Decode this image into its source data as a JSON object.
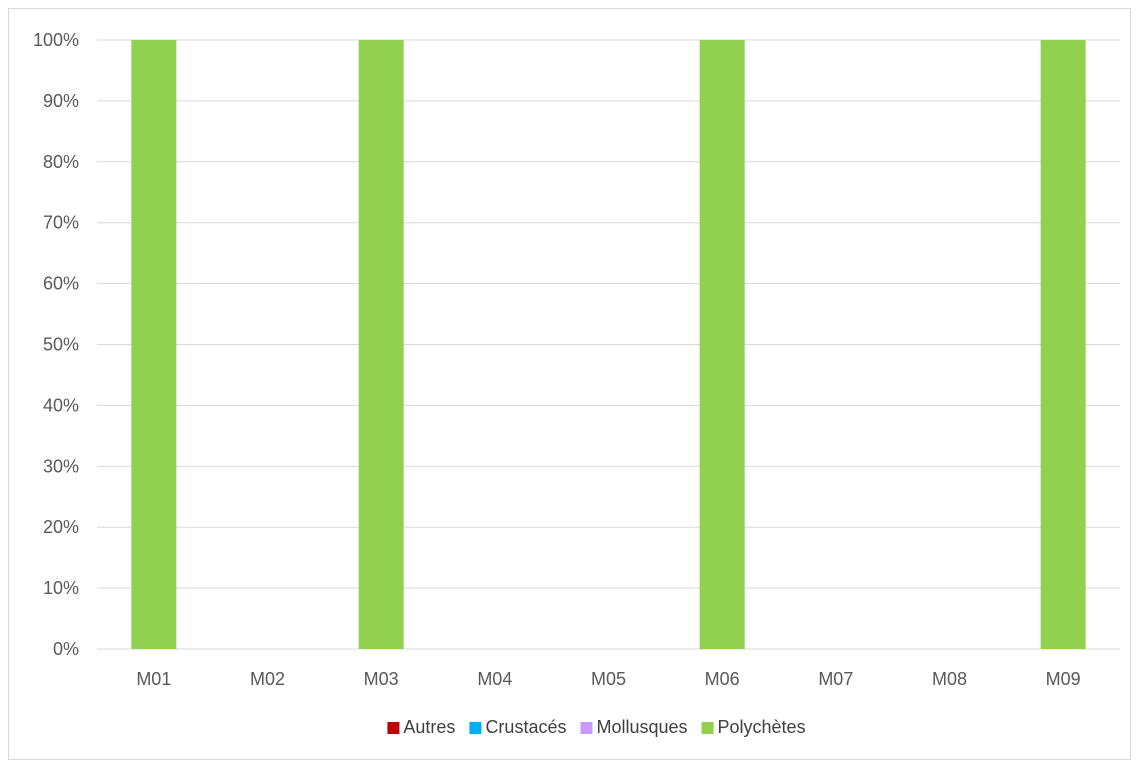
{
  "chart_data": {
    "type": "bar",
    "stacked": true,
    "normalized": true,
    "categories": [
      "M01",
      "M02",
      "M03",
      "M04",
      "M05",
      "M06",
      "M07",
      "M08",
      "M09"
    ],
    "series": [
      {
        "name": "Autres",
        "color": "#c00000",
        "values": [
          0,
          0,
          0,
          0,
          0,
          0,
          0,
          0,
          0
        ]
      },
      {
        "name": "Crustacés",
        "color": "#00b0f0",
        "values": [
          0,
          0,
          0,
          0,
          0,
          0,
          0,
          0,
          0
        ]
      },
      {
        "name": "Mollusques",
        "color": "#cc99ff",
        "values": [
          0,
          0,
          0,
          0,
          0,
          0,
          0,
          0,
          0
        ]
      },
      {
        "name": "Polychètes",
        "color": "#92d050",
        "values": [
          100,
          0,
          100,
          0,
          0,
          100,
          0,
          0,
          100
        ]
      }
    ],
    "yticks": [
      "0%",
      "10%",
      "20%",
      "30%",
      "40%",
      "50%",
      "60%",
      "70%",
      "80%",
      "90%",
      "100%"
    ],
    "ylim": [
      0,
      100
    ],
    "grid": true,
    "legend_position": "bottom",
    "gridline_color": "#d9d9d9"
  }
}
